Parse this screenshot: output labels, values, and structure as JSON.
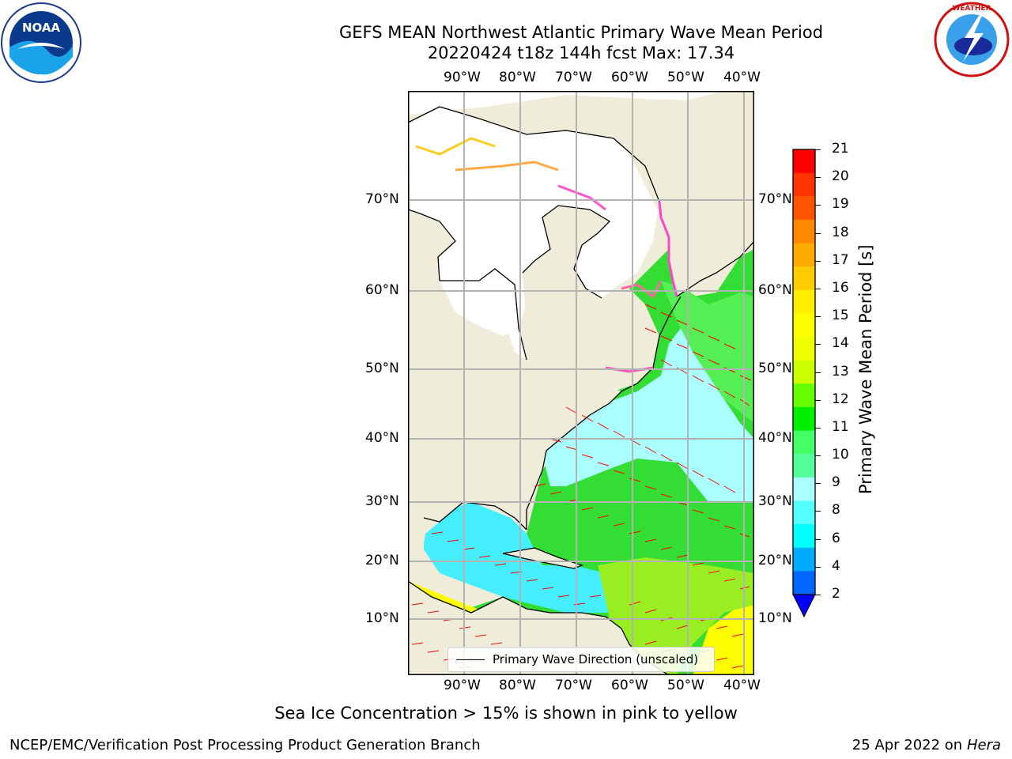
{
  "title_line1": "GEFS MEAN Northwest Atlantic Primary Wave Mean Period",
  "title_line2": "20220424 t18z 144h fcst   Max: 17.34",
  "subtitle": "Sea Ice Concentration > 15% is shown in pink to yellow",
  "credit_left": "NCEP/EMC/Verification Post Processing Product Generation Branch",
  "credit_right_date": "25 Apr 2022 on ",
  "credit_right_host": "Hera",
  "legend_label": "Primary Wave Direction (unscaled)",
  "logos": {
    "left": "noaa-logo",
    "right": "national-weather-service-logo"
  },
  "map": {
    "lon_labels": [
      "90°W",
      "80°W",
      "70°W",
      "60°W",
      "50°W",
      "40°W"
    ],
    "lat_labels": [
      "70°N",
      "60°N",
      "50°N",
      "40°N",
      "30°N",
      "20°N",
      "10°N"
    ],
    "colors": {
      "land": "#efedd9",
      "arrows": "#ff0000",
      "gridlines": "#b3b3b3"
    }
  },
  "colorbar": {
    "title": "Primary Wave Mean Period [s]",
    "tick_labels": [
      "21",
      "20",
      "19",
      "18",
      "17",
      "16",
      "15",
      "14",
      "13",
      "12",
      "11",
      "10",
      "9",
      "8",
      "6",
      "4",
      "2"
    ],
    "colors": [
      "#ff0000",
      "#ff3300",
      "#ff5500",
      "#ff8800",
      "#ffaa00",
      "#ffcc00",
      "#ffee00",
      "#ffff00",
      "#eeff00",
      "#ccff00",
      "#66ff00",
      "#00ee00",
      "#44ff66",
      "#55ff99",
      "#aaffff",
      "#55ffff",
      "#00ffff",
      "#00aaff",
      "#0066ff"
    ]
  }
}
